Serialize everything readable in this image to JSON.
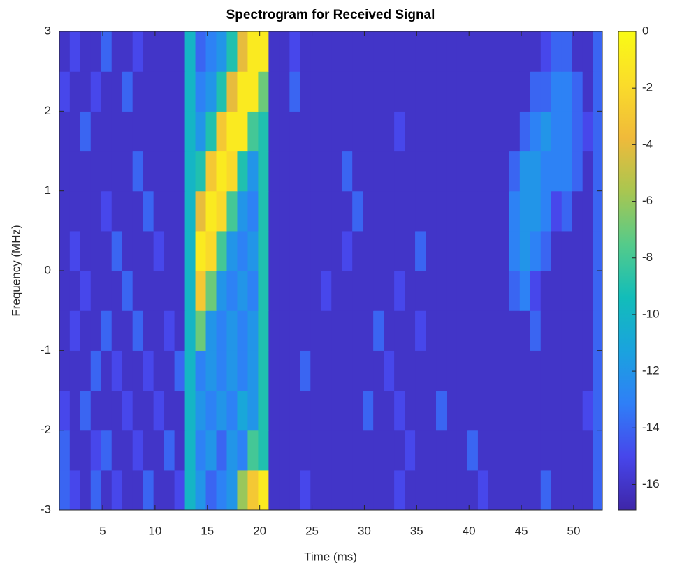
{
  "chart_data": {
    "type": "heatmap",
    "title": "Spectrogram for Received Signal",
    "xlabel": "Time (ms)",
    "ylabel": "Frequency (MHz)",
    "xlim": [
      0.86,
      52.74
    ],
    "ylim": [
      -3,
      3
    ],
    "xticks": [
      5,
      10,
      15,
      20,
      25,
      30,
      35,
      40,
      45,
      50
    ],
    "yticks": [
      -3,
      -2,
      -1,
      0,
      1,
      2,
      3
    ],
    "clim": [
      -16.9,
      0
    ],
    "cticks": [
      -16,
      -14,
      -12,
      -10,
      -8,
      -6,
      -4,
      -2,
      0
    ],
    "colormap": [
      "#3e26a8",
      "#4746eb",
      "#2f7ff7",
      "#1aa3de",
      "#12bdb9",
      "#55cb8a",
      "#a9c650",
      "#f0ba3a",
      "#fadc2a",
      "#f9fb15"
    ],
    "x": [
      1.35,
      2.35,
      3.35,
      4.35,
      5.35,
      6.35,
      7.35,
      8.35,
      9.35,
      10.35,
      11.35,
      12.35,
      13.35,
      14.35,
      15.35,
      16.35,
      17.35,
      18.35,
      19.35,
      20.35,
      21.35,
      22.35,
      23.35,
      24.35,
      25.35,
      26.35,
      27.35,
      28.35,
      29.35,
      30.35,
      31.35,
      32.35,
      33.35,
      34.35,
      35.35,
      36.35,
      37.35,
      38.35,
      39.35,
      40.35,
      41.35,
      42.35,
      43.35,
      44.35,
      45.35,
      46.35,
      47.35,
      48.35,
      49.35,
      50.35,
      51.35,
      52.35
    ],
    "y": [
      -2.75,
      -2.25,
      -1.75,
      -1.25,
      -0.75,
      -0.25,
      0.25,
      0.75,
      1.25,
      1.75,
      2.25,
      2.75
    ],
    "z": [
      [
        -14,
        -15,
        -16,
        -14,
        -16,
        -15,
        -16,
        -16,
        -14,
        -16,
        -16,
        -15,
        -10,
        -12,
        -14,
        -13,
        -12,
        -6,
        -3,
        -1,
        -16,
        -16,
        -16,
        -15,
        -16,
        -16,
        -16,
        -16,
        -16,
        -16,
        -16,
        -16,
        -15,
        -16,
        -16,
        -16,
        -16,
        -16,
        -16,
        -16,
        -15,
        -16,
        -16,
        -16,
        -16,
        -16,
        -14,
        -16,
        -16,
        -16,
        -16,
        -14
      ],
      [
        -14,
        -16,
        -16,
        -15,
        -14,
        -16,
        -16,
        -15,
        -16,
        -16,
        -14,
        -16,
        -10,
        -13,
        -12,
        -14,
        -12,
        -13,
        -8,
        -9,
        -16,
        -16,
        -16,
        -16,
        -16,
        -16,
        -16,
        -16,
        -16,
        -16,
        -16,
        -16,
        -16,
        -15,
        -16,
        -16,
        -16,
        -16,
        -16,
        -14,
        -16,
        -16,
        -16,
        -16,
        -16,
        -16,
        -16,
        -16,
        -16,
        -16,
        -16,
        -14
      ],
      [
        -15,
        -16,
        -14,
        -16,
        -16,
        -16,
        -15,
        -16,
        -16,
        -15,
        -16,
        -16,
        -10,
        -12,
        -13,
        -12,
        -13,
        -11,
        -12,
        -9,
        -16,
        -16,
        -16,
        -16,
        -16,
        -16,
        -16,
        -16,
        -16,
        -14,
        -16,
        -16,
        -15,
        -16,
        -16,
        -16,
        -14,
        -16,
        -16,
        -16,
        -16,
        -16,
        -16,
        -16,
        -16,
        -16,
        -16,
        -16,
        -16,
        -16,
        -15,
        -14
      ],
      [
        -16,
        -16,
        -16,
        -14,
        -16,
        -15,
        -16,
        -16,
        -15,
        -16,
        -16,
        -14,
        -10,
        -13,
        -12,
        -13,
        -12,
        -13,
        -12,
        -9,
        -16,
        -16,
        -16,
        -14,
        -16,
        -16,
        -16,
        -16,
        -16,
        -16,
        -16,
        -15,
        -16,
        -16,
        -16,
        -16,
        -16,
        -16,
        -16,
        -16,
        -16,
        -16,
        -16,
        -16,
        -16,
        -16,
        -16,
        -16,
        -16,
        -16,
        -16,
        -14
      ],
      [
        -16,
        -15,
        -16,
        -16,
        -14,
        -16,
        -16,
        -14,
        -16,
        -16,
        -15,
        -16,
        -10,
        -7,
        -12,
        -13,
        -12,
        -13,
        -12,
        -9,
        -16,
        -16,
        -16,
        -16,
        -16,
        -16,
        -16,
        -16,
        -16,
        -16,
        -14,
        -16,
        -16,
        -16,
        -15,
        -16,
        -16,
        -16,
        -16,
        -16,
        -16,
        -16,
        -16,
        -16,
        -16,
        -14,
        -16,
        -16,
        -16,
        -16,
        -16,
        -14
      ],
      [
        -16,
        -16,
        -15,
        -16,
        -16,
        -16,
        -14,
        -16,
        -16,
        -16,
        -16,
        -16,
        -10,
        -3,
        -7,
        -12,
        -13,
        -12,
        -13,
        -9,
        -16,
        -16,
        -16,
        -16,
        -16,
        -15,
        -16,
        -16,
        -16,
        -16,
        -16,
        -16,
        -15,
        -16,
        -16,
        -16,
        -16,
        -16,
        -16,
        -16,
        -16,
        -16,
        -16,
        -14,
        -13,
        -15,
        -16,
        -16,
        -16,
        -16,
        -16,
        -14
      ],
      [
        -16,
        -15,
        -16,
        -16,
        -16,
        -14,
        -16,
        -16,
        -16,
        -15,
        -16,
        -16,
        -10,
        -1,
        -2,
        -8,
        -12,
        -13,
        -12,
        -9,
        -16,
        -16,
        -16,
        -16,
        -16,
        -16,
        -16,
        -15,
        -16,
        -16,
        -16,
        -16,
        -16,
        -16,
        -14,
        -16,
        -16,
        -16,
        -16,
        -16,
        -16,
        -16,
        -16,
        -13,
        -12,
        -13,
        -14,
        -16,
        -16,
        -16,
        -16,
        -14
      ],
      [
        -16,
        -16,
        -16,
        -16,
        -15,
        -16,
        -16,
        -16,
        -14,
        -16,
        -16,
        -16,
        -10,
        -4,
        -1,
        -2,
        -8,
        -12,
        -13,
        -9,
        -16,
        -16,
        -16,
        -16,
        -16,
        -16,
        -16,
        -16,
        -14,
        -16,
        -16,
        -16,
        -16,
        -16,
        -16,
        -16,
        -16,
        -16,
        -16,
        -16,
        -16,
        -16,
        -16,
        -13,
        -12,
        -12,
        -13,
        -15,
        -14,
        -16,
        -16,
        -14
      ],
      [
        -16,
        -16,
        -16,
        -16,
        -16,
        -16,
        -16,
        -14,
        -16,
        -16,
        -16,
        -16,
        -10,
        -9,
        -3,
        -1,
        -2,
        -9,
        -12,
        -9,
        -16,
        -16,
        -16,
        -16,
        -16,
        -16,
        -16,
        -14,
        -16,
        -16,
        -16,
        -16,
        -16,
        -16,
        -16,
        -16,
        -16,
        -16,
        -16,
        -16,
        -16,
        -16,
        -16,
        -14,
        -12,
        -12,
        -13,
        -13,
        -13,
        -14,
        -16,
        -14
      ],
      [
        -16,
        -16,
        -14,
        -16,
        -16,
        -16,
        -16,
        -16,
        -16,
        -16,
        -16,
        -16,
        -10,
        -12,
        -9,
        -3,
        -1,
        -1,
        -8,
        -9,
        -16,
        -16,
        -16,
        -16,
        -16,
        -16,
        -16,
        -16,
        -16,
        -16,
        -16,
        -16,
        -15,
        -16,
        -16,
        -16,
        -16,
        -16,
        -16,
        -16,
        -16,
        -16,
        -16,
        -16,
        -14,
        -13,
        -12,
        -13,
        -13,
        -14,
        -15,
        -14
      ],
      [
        -15,
        -16,
        -16,
        -15,
        -16,
        -16,
        -14,
        -16,
        -16,
        -16,
        -16,
        -16,
        -10,
        -13,
        -12,
        -9,
        -4,
        -1,
        -1,
        -7,
        -16,
        -16,
        -14,
        -16,
        -16,
        -16,
        -16,
        -16,
        -16,
        -16,
        -16,
        -16,
        -16,
        -16,
        -16,
        -16,
        -16,
        -16,
        -16,
        -16,
        -16,
        -16,
        -16,
        -16,
        -16,
        -14,
        -14,
        -13,
        -13,
        -14,
        -16,
        -14
      ],
      [
        -16,
        -15,
        -16,
        -16,
        -14,
        -16,
        -16,
        -15,
        -16,
        -16,
        -16,
        -16,
        -10,
        -14,
        -13,
        -12,
        -9,
        -4,
        -1,
        -1,
        -16,
        -16,
        -15,
        -16,
        -16,
        -16,
        -16,
        -16,
        -16,
        -16,
        -16,
        -16,
        -16,
        -16,
        -16,
        -16,
        -16,
        -16,
        -16,
        -16,
        -16,
        -16,
        -16,
        -16,
        -16,
        -16,
        -15,
        -14,
        -14,
        -16,
        -16,
        -14
      ]
    ]
  }
}
